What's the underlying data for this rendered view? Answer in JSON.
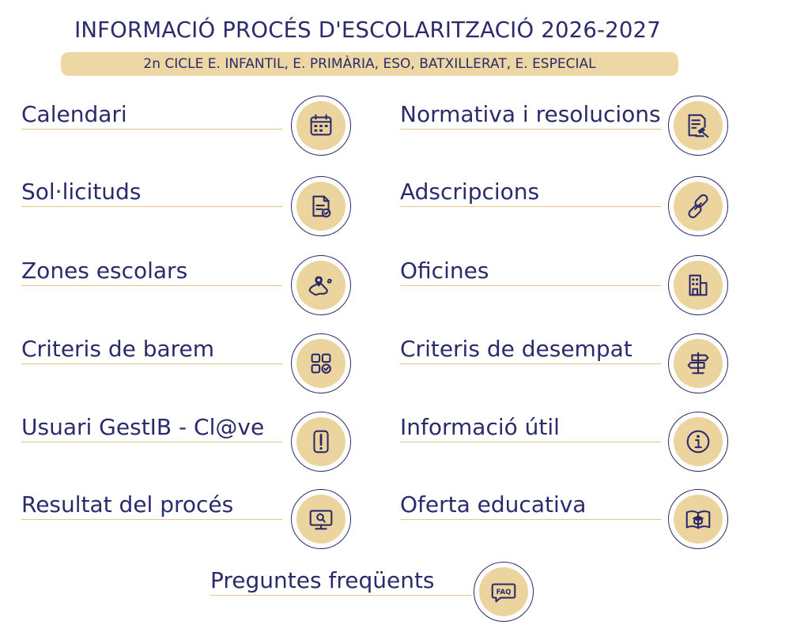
{
  "header": {
    "title": "INFORMACIÓ PROCÉS D'ESCOLARITZACIÓ 2026-2027",
    "subtitle": "2n CICLE E. INFANTIL, E. PRIMÀRIA, ESO, BATXILLERAT, E. ESPECIAL"
  },
  "left_items": [
    {
      "label": "Calendari",
      "icon": "calendar-icon"
    },
    {
      "label": "Sol·licituds",
      "icon": "application-form-icon"
    },
    {
      "label": "Zones escolars",
      "icon": "map-pin-icon"
    },
    {
      "label": "Criteris de barem",
      "icon": "grid-check-icon"
    },
    {
      "label": "Usuari GestIB - Cl@ve",
      "icon": "exclamation-icon"
    },
    {
      "label": "Resultat del procés",
      "icon": "monitor-search-icon"
    }
  ],
  "right_items": [
    {
      "label": "Normativa i resolucions",
      "icon": "document-gavel-icon"
    },
    {
      "label": "Adscripcions",
      "icon": "link-chain-icon"
    },
    {
      "label": "Oficines",
      "icon": "building-icon"
    },
    {
      "label": "Criteris de desempat",
      "icon": "signpost-icon"
    },
    {
      "label": "Informació útil",
      "icon": "info-icon"
    },
    {
      "label": "Oferta educativa",
      "icon": "book-graduation-icon"
    }
  ],
  "faq_item": {
    "label": "Preguntes freqüents",
    "icon": "faq-icon",
    "icon_text": "FAQ"
  },
  "colors": {
    "navy": "#2b2a6b",
    "gold": "#ecd49e",
    "gold_line": "#e3c784"
  }
}
